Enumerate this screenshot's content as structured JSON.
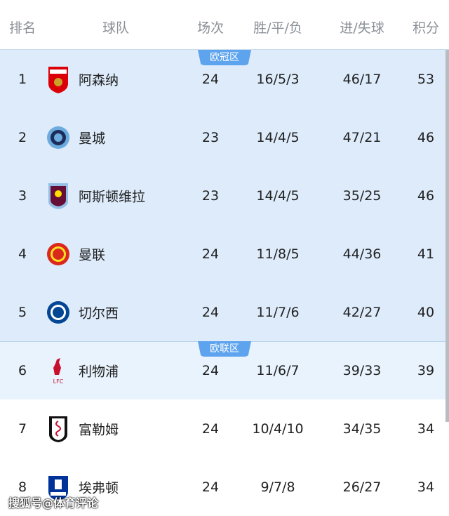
{
  "header": {
    "rank": "排名",
    "team": "球队",
    "played": "场次",
    "wdl": "胜/平/负",
    "goals": "进/失球",
    "points": "积分"
  },
  "zones": {
    "ucl": "欧冠区",
    "uel": "欧联区"
  },
  "colors": {
    "ucl_bg": "#ddebfb",
    "uel_bg": "#e9f3fd",
    "badge": "#5ea3ee"
  },
  "rows": [
    {
      "rank": "1",
      "team": "阿森纳",
      "logo": "arsenal-crest",
      "played": "24",
      "wdl": "16/5/3",
      "goals": "46/17",
      "points": "53",
      "zone": "ucl"
    },
    {
      "rank": "2",
      "team": "曼城",
      "logo": "man-city-crest",
      "played": "23",
      "wdl": "14/4/5",
      "goals": "47/21",
      "points": "46",
      "zone": "ucl"
    },
    {
      "rank": "3",
      "team": "阿斯顿维拉",
      "logo": "aston-villa-crest",
      "played": "23",
      "wdl": "14/4/5",
      "goals": "35/25",
      "points": "46",
      "zone": "ucl"
    },
    {
      "rank": "4",
      "team": "曼联",
      "logo": "man-united-crest",
      "played": "24",
      "wdl": "11/8/5",
      "goals": "44/36",
      "points": "41",
      "zone": "ucl"
    },
    {
      "rank": "5",
      "team": "切尔西",
      "logo": "chelsea-crest",
      "played": "24",
      "wdl": "11/7/6",
      "goals": "42/27",
      "points": "40",
      "zone": "ucl"
    },
    {
      "rank": "6",
      "team": "利物浦",
      "logo": "liverpool-crest",
      "played": "24",
      "wdl": "11/6/7",
      "goals": "39/33",
      "points": "39",
      "zone": "uel"
    },
    {
      "rank": "7",
      "team": "富勒姆",
      "logo": "fulham-crest",
      "played": "24",
      "wdl": "10/4/10",
      "goals": "34/35",
      "points": "34",
      "zone": ""
    },
    {
      "rank": "8",
      "team": "埃弗顿",
      "logo": "everton-crest",
      "played": "24",
      "wdl": "9/7/8",
      "goals": "26/27",
      "points": "34",
      "zone": ""
    }
  ],
  "watermark": "搜狐号@体育评论"
}
